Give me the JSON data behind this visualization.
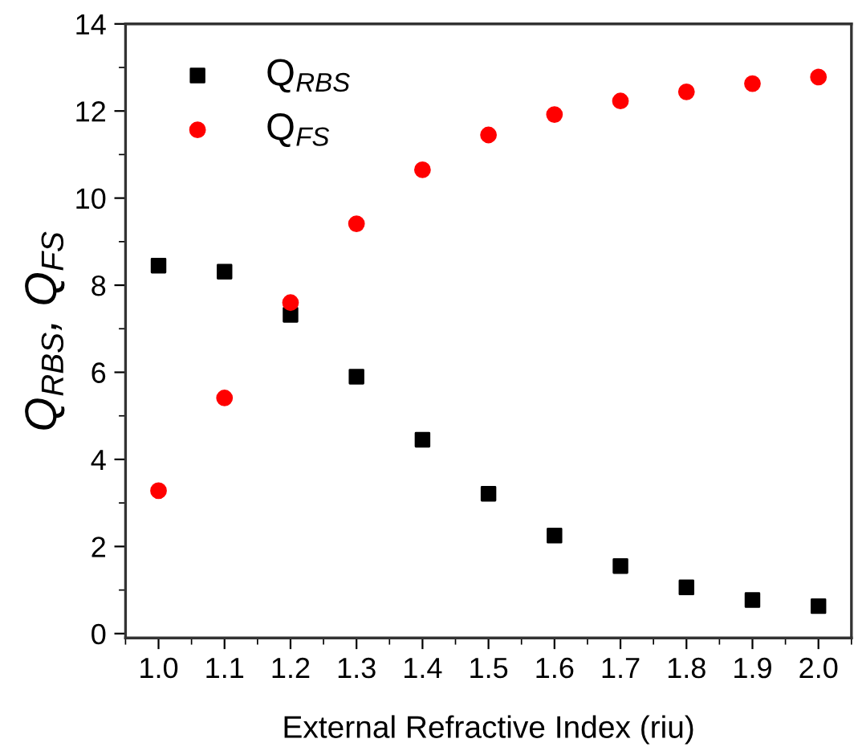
{
  "chart_data": {
    "type": "scatter",
    "xlabel": "External Refractive Index (riu)",
    "ylabel": "Q$_{RBS}$, Q$_{FS}$",
    "x": [
      1.0,
      1.1,
      1.2,
      1.3,
      1.4,
      1.5,
      1.6,
      1.7,
      1.8,
      1.9,
      2.0
    ],
    "series": [
      {
        "name": "Q$_{RBS}$",
        "color": "#000000",
        "marker": "square",
        "values": [
          8.45,
          8.31,
          7.32,
          5.9,
          4.45,
          3.21,
          2.25,
          1.55,
          1.06,
          0.77,
          0.63
        ]
      },
      {
        "name": "Q$_{FS}$",
        "color": "#ff0000",
        "marker": "circle",
        "values": [
          3.28,
          5.41,
          7.6,
          9.41,
          10.65,
          11.45,
          11.92,
          12.23,
          12.44,
          12.63,
          12.78
        ]
      }
    ],
    "xlim": [
      0.95,
      2.05
    ],
    "xticks": [
      {
        "value": 1.0,
        "label": "1.0"
      },
      1.1,
      1.2,
      1.3,
      1.4,
      1.5,
      1.6,
      1.7,
      1.8,
      1.9,
      {
        "value": 2.0,
        "label": "2.0"
      }
    ],
    "ylim": [
      -0.1,
      14
    ],
    "yticks": [
      0,
      2,
      4,
      6,
      8,
      10,
      12,
      14
    ],
    "grid": false,
    "legend": "top left"
  }
}
